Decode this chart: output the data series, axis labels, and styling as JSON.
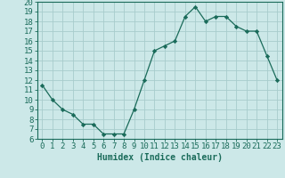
{
  "x": [
    0,
    1,
    2,
    3,
    4,
    5,
    6,
    7,
    8,
    9,
    10,
    11,
    12,
    13,
    14,
    15,
    16,
    17,
    18,
    19,
    20,
    21,
    22,
    23
  ],
  "y": [
    11.5,
    10.0,
    9.0,
    8.5,
    7.5,
    7.5,
    6.5,
    6.5,
    6.5,
    9.0,
    12.0,
    15.0,
    15.5,
    16.0,
    18.5,
    19.5,
    18.0,
    18.5,
    18.5,
    17.5,
    17.0,
    17.0,
    14.5,
    12.0
  ],
  "xlim": [
    -0.5,
    23.5
  ],
  "ylim": [
    6,
    20
  ],
  "yticks": [
    6,
    7,
    8,
    9,
    10,
    11,
    12,
    13,
    14,
    15,
    16,
    17,
    18,
    19,
    20
  ],
  "xticks": [
    0,
    1,
    2,
    3,
    4,
    5,
    6,
    7,
    8,
    9,
    10,
    11,
    12,
    13,
    14,
    15,
    16,
    17,
    18,
    19,
    20,
    21,
    22,
    23
  ],
  "xlabel": "Humidex (Indice chaleur)",
  "line_color": "#1a6b5a",
  "marker": "D",
  "marker_size": 2.2,
  "bg_color": "#cce8e8",
  "grid_color": "#a8cccc",
  "tick_color": "#1a6b5a",
  "xlabel_fontsize": 7,
  "tick_fontsize": 6.5
}
